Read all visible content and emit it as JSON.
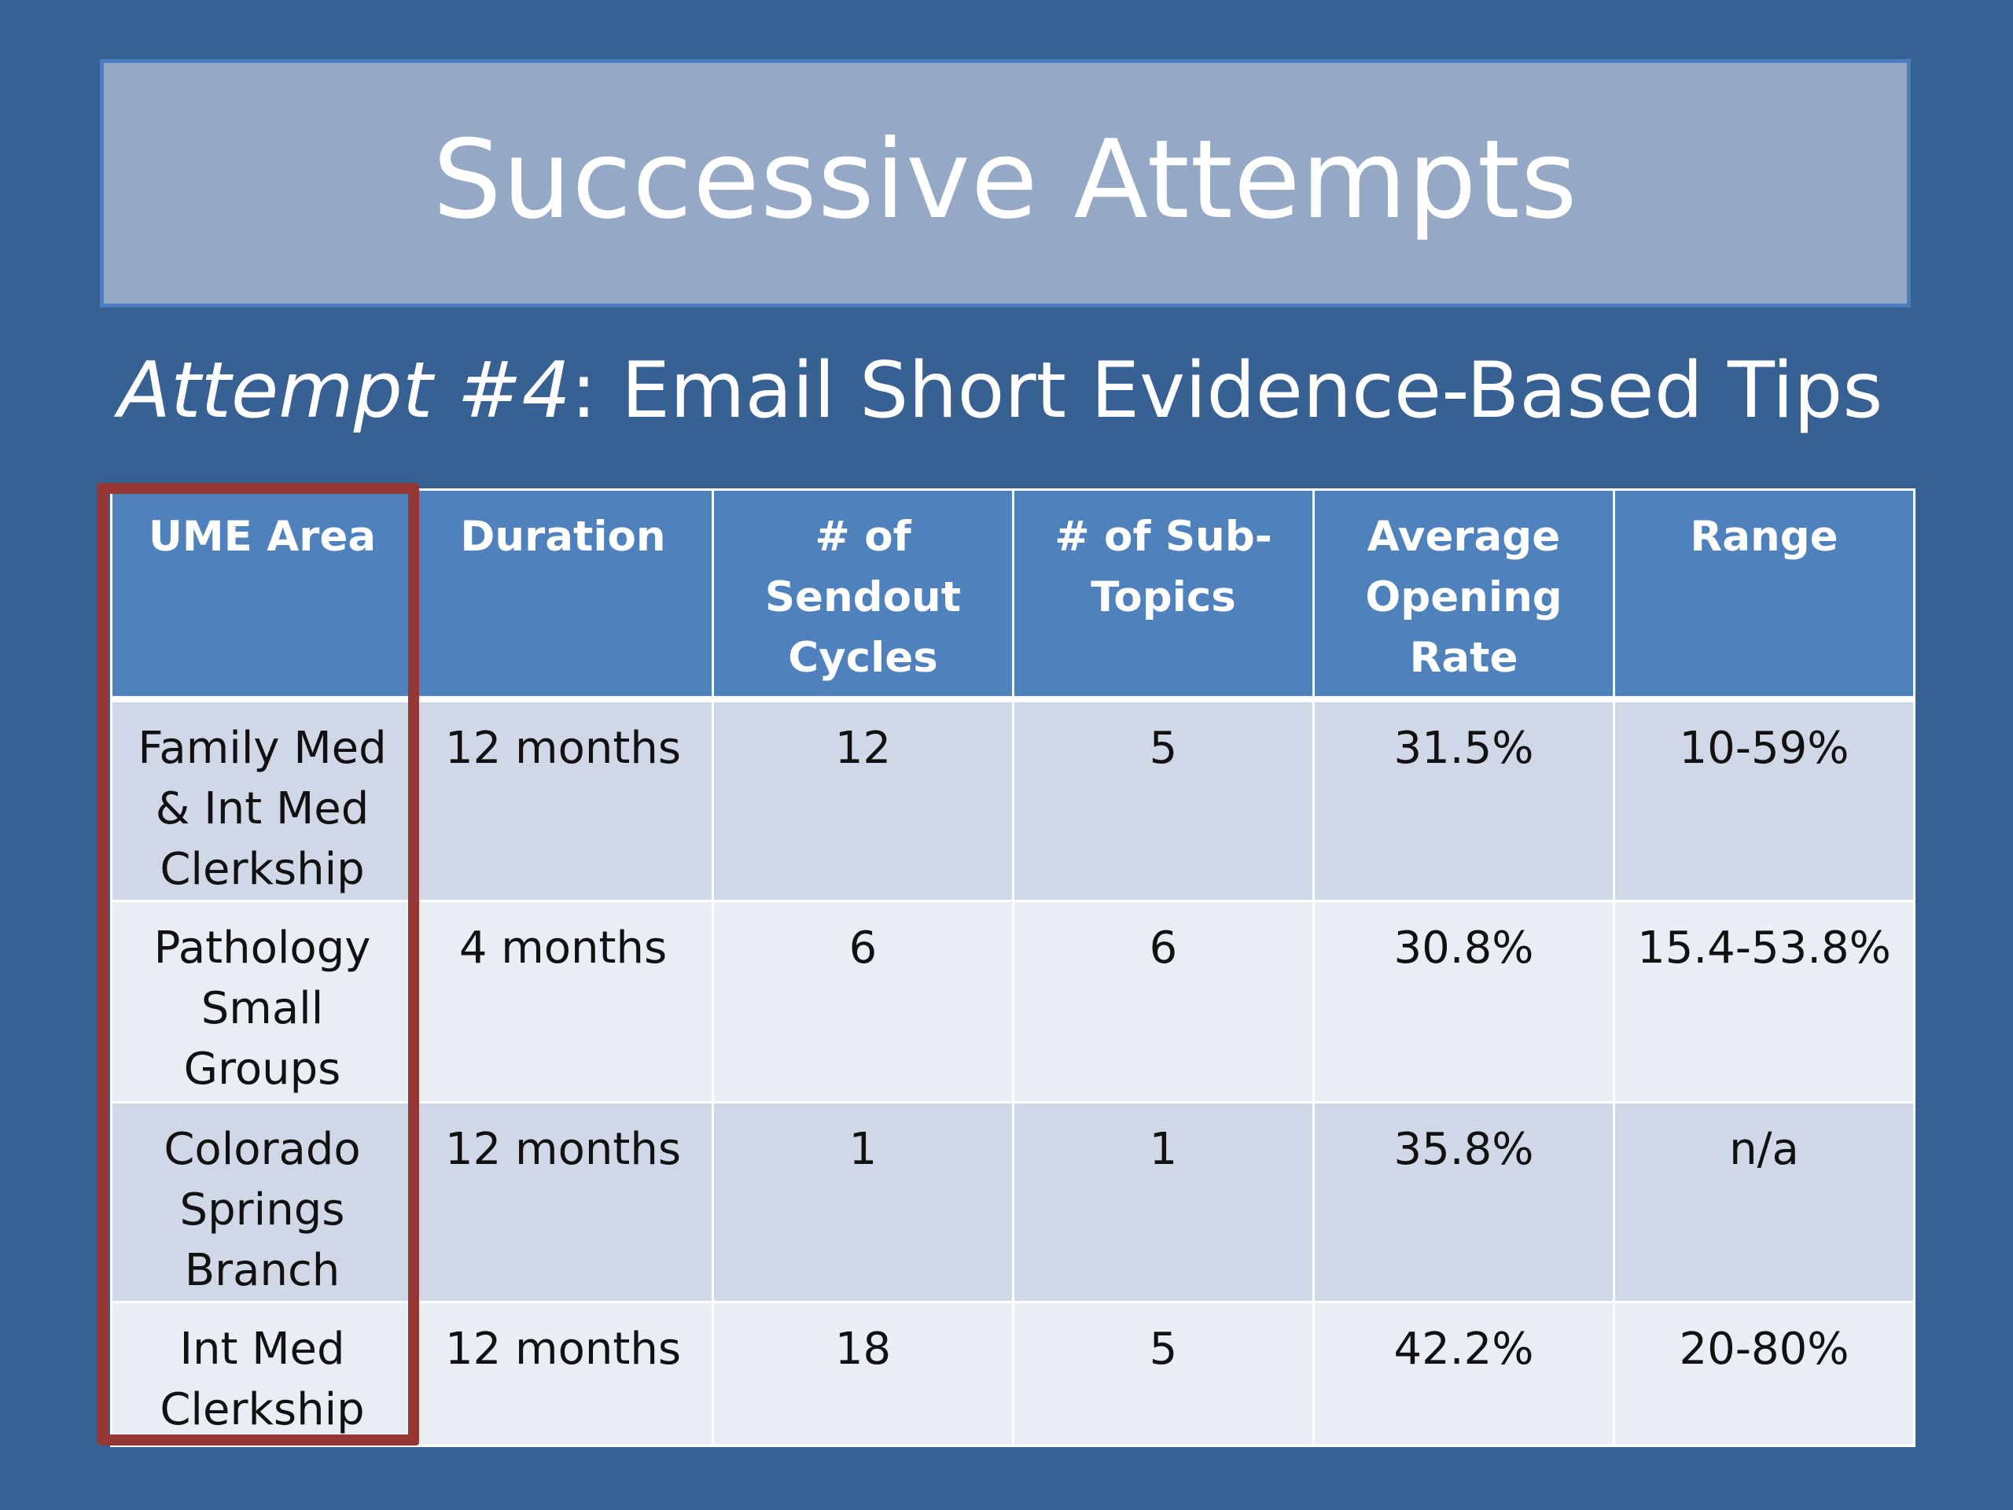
{
  "slide": {
    "title": "Successive Attempts",
    "subtitle_italic": "Attempt #4",
    "subtitle_rest": ": Email Short Evidence-Based Tips"
  },
  "table": {
    "headers": [
      "UME Area",
      "Duration",
      "# of Sendout Cycles",
      "# of Sub-Topics",
      "Average Opening Rate",
      "Range"
    ],
    "rows": [
      [
        "Family Med & Int Med Clerkship",
        "12 months",
        "12",
        "5",
        "31.5%",
        "10-59%"
      ],
      [
        "Pathology Small Groups",
        "4 months",
        "6",
        "6",
        "30.8%",
        "15.4-53.8%"
      ],
      [
        "Colorado Springs Branch",
        "12 months",
        "1",
        "1",
        "35.8%",
        "n/a"
      ],
      [
        "Int Med Clerkship",
        "12 months",
        "18",
        "5",
        "42.2%",
        "20-80%"
      ]
    ]
  },
  "colors": {
    "background": "#376093",
    "title_box": "#95a9c6",
    "header_fill": "#4f81bd",
    "row_dark": "#d0d8e8",
    "row_light": "#e9edf4",
    "highlight_border": "#953735"
  }
}
